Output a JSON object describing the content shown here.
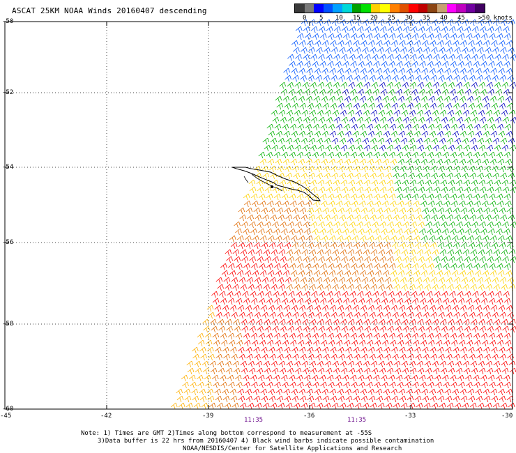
{
  "title": "ASCAT 25KM NOAA Winds 20160407 descending",
  "colorbar": {
    "colors": [
      "#3a3a3a",
      "#7a7a7a",
      "#0000ff",
      "#0050ff",
      "#00a0ff",
      "#00d8d8",
      "#00a000",
      "#00e000",
      "#ffd000",
      "#ffff00",
      "#ff8000",
      "#e05000",
      "#ff0000",
      "#c00000",
      "#8b4513",
      "#c8a070",
      "#ff00ff",
      "#c000c0",
      "#7000a0",
      "#400060"
    ],
    "labels": [
      "0",
      "5",
      "10",
      "15",
      "20",
      "25",
      "30",
      "35",
      "40",
      "45",
      ">50 knots"
    ]
  },
  "axes": {
    "lat_labels": [
      "-50",
      "-52",
      "-54",
      "-56",
      "-58",
      "-60"
    ],
    "lon_labels": [
      "-45",
      "-42",
      "-39",
      "-36",
      "-33",
      "-30"
    ]
  },
  "times": [
    "11:35",
    "11:35"
  ],
  "notes": [
    "Note: 1) Times are GMT 2)Times along bottom correspond to measurement at -55S",
    "3)Data buffer is 22 hrs from 20160407 4) Black wind barbs indicate possible contamination",
    "NOAA/NESDIS/Center for Satellite Applications and Research"
  ],
  "wind_regions": [
    {
      "zone": "north",
      "color": "#0055ff"
    },
    {
      "zone": "north-mid",
      "color": "#00b000"
    },
    {
      "zone": "east-mid",
      "color": "#0000c0"
    },
    {
      "zone": "center",
      "color": "#ffd200"
    },
    {
      "zone": "south-west",
      "color": "#e06a00"
    },
    {
      "zone": "south",
      "color": "#ff0000"
    },
    {
      "zone": "edge",
      "color": "#ffb000"
    }
  ]
}
